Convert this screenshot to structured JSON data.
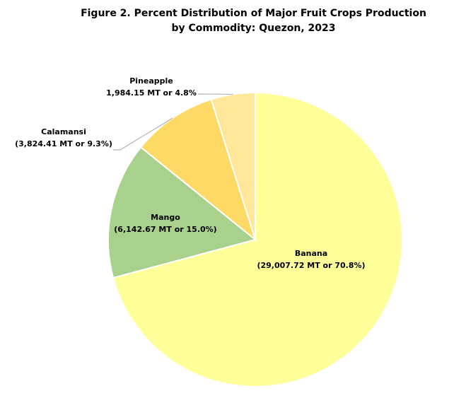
{
  "chart_data": {
    "type": "pie",
    "title_lines": [
      "Figure 2. Percent Distribution of Major Fruit Crops Production",
      "by Commodity: Quezon, 2023"
    ],
    "slices": [
      {
        "name": "Banana",
        "value": 29007.72,
        "percent": 70.8,
        "detail": "(29,007.72 MT or 70.8%)",
        "color": "#FFFF99"
      },
      {
        "name": "Mango",
        "value": 6142.67,
        "percent": 15.0,
        "detail": "(6,142.67 MT or 15.0%)",
        "color": "#A9D18E"
      },
      {
        "name": "Calamansi",
        "value": 3824.41,
        "percent": 9.3,
        "detail": "(3,824.41 MT or 9.3%)",
        "color": "#FFD966"
      },
      {
        "name": "Pineapple",
        "value": 1984.15,
        "percent": 4.8,
        "detail": "1,984.15 MT or 4.8%",
        "color": "#FFE699"
      }
    ],
    "legend": "none"
  }
}
